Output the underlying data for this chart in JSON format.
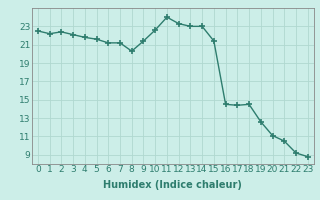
{
  "x": [
    0,
    1,
    2,
    3,
    4,
    5,
    6,
    7,
    8,
    9,
    10,
    11,
    12,
    13,
    14,
    15,
    16,
    17,
    18,
    19,
    20,
    21,
    22,
    23
  ],
  "y": [
    22.5,
    22.2,
    22.4,
    22.1,
    21.8,
    21.6,
    21.2,
    21.2,
    20.3,
    21.4,
    22.6,
    24.0,
    23.3,
    23.0,
    23.0,
    21.4,
    14.5,
    14.4,
    14.5,
    12.6,
    11.1,
    10.5,
    9.2,
    8.8
  ],
  "xlabel": "Humidex (Indice chaleur)",
  "ylabel": "",
  "ylim": [
    8,
    25
  ],
  "xlim": [
    -0.5,
    23.5
  ],
  "yticks": [
    9,
    11,
    13,
    15,
    17,
    19,
    21,
    23
  ],
  "xticks": [
    0,
    1,
    2,
    3,
    4,
    5,
    6,
    7,
    8,
    9,
    10,
    11,
    12,
    13,
    14,
    15,
    16,
    17,
    18,
    19,
    20,
    21,
    22,
    23
  ],
  "line_color": "#2e7d6e",
  "marker": "+",
  "marker_size": 4,
  "bg_color": "#cceee8",
  "grid_color": "#b0d8d0",
  "label_fontsize": 7,
  "tick_fontsize": 6.5
}
